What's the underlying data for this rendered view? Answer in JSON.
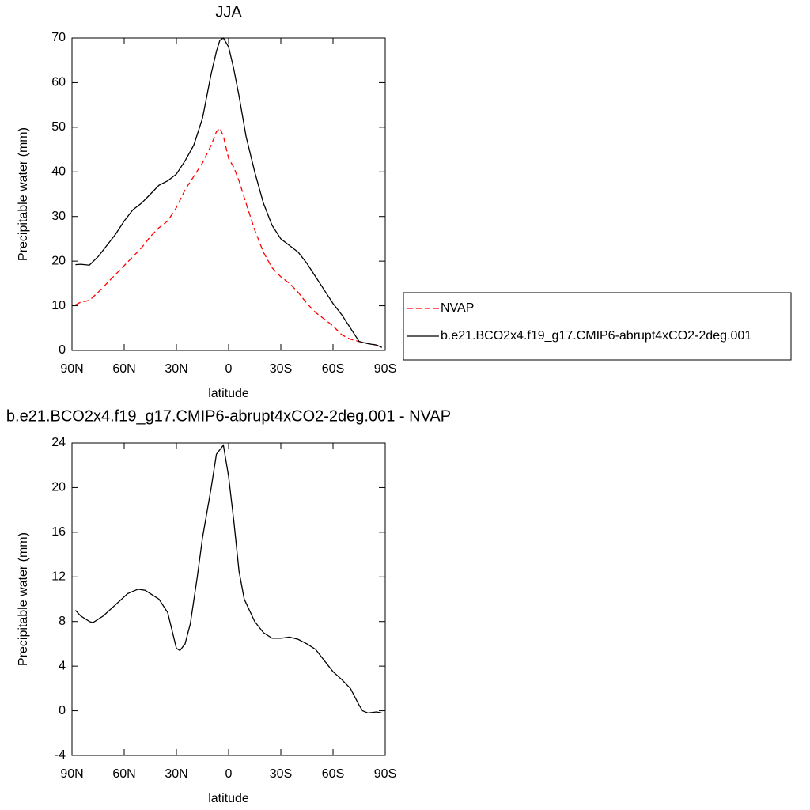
{
  "chart_data": [
    {
      "type": "line",
      "title": "JJA",
      "xlabel": "latitude",
      "ylabel": "Precipitable water (mm)",
      "x": [
        88,
        85,
        80,
        75,
        70,
        65,
        60,
        55,
        50,
        45,
        40,
        35,
        30,
        25,
        20,
        15,
        10,
        7,
        5,
        3,
        0,
        -3,
        -6,
        -10,
        -15,
        -20,
        -25,
        -30,
        -35,
        -40,
        -45,
        -50,
        -55,
        -60,
        -65,
        -70,
        -75,
        -80,
        -85,
        -88
      ],
      "series": [
        {
          "name": "NVAP",
          "color": "#ff0000",
          "line_style": "dashed",
          "values": [
            10.2,
            10.8,
            11.2,
            13,
            15,
            17,
            19,
            21,
            23,
            25.5,
            27.5,
            29,
            32,
            36,
            39,
            42,
            46,
            49,
            49.8,
            48,
            43,
            41,
            38,
            33,
            27,
            22,
            18.5,
            16.5,
            15,
            13,
            10.5,
            8.5,
            7,
            5.5,
            3.5,
            2.5,
            2,
            1.6,
            1.2,
            0.6
          ]
        },
        {
          "name": "b.e21.BCO2x4.f19_g17.CMIP6-abrupt4xCO2-2deg.001",
          "color": "#000000",
          "line_style": "solid",
          "values": [
            19.2,
            19.3,
            19.1,
            21,
            23.5,
            26,
            29,
            31.5,
            33,
            35,
            37,
            38,
            39.5,
            42.5,
            46,
            52,
            62,
            67,
            69.5,
            70,
            68,
            63,
            57,
            48,
            40,
            33,
            28,
            25,
            23.5,
            22,
            19.5,
            16.5,
            13.5,
            10.5,
            8,
            5,
            2,
            1.5,
            1.2,
            0.7
          ]
        }
      ],
      "xlim": [
        90,
        -90
      ],
      "xticks": [
        {
          "value": 90,
          "label": "90N"
        },
        {
          "value": 60,
          "label": "60N"
        },
        {
          "value": 30,
          "label": "30N"
        },
        0,
        {
          "value": -30,
          "label": "30S"
        },
        {
          "value": -60,
          "label": "60S"
        },
        {
          "value": -90,
          "label": "90S"
        }
      ],
      "ylim": [
        0,
        70
      ],
      "yticks": [
        0,
        10,
        20,
        30,
        40,
        50,
        60,
        70
      ],
      "grid": false,
      "legend": "right"
    },
    {
      "type": "line",
      "title": "b.e21.BCO2x4.f19_g17.CMIP6-abrupt4xCO2-2deg.001 - NVAP",
      "xlabel": "latitude",
      "ylabel": "Precipitable water (mm)",
      "x": [
        88,
        85,
        80,
        78,
        72,
        65,
        58,
        52,
        48,
        45,
        40,
        35,
        30,
        28,
        25,
        22,
        18,
        15,
        10,
        7,
        3,
        0,
        -3,
        -6,
        -9,
        -15,
        -20,
        -25,
        -30,
        -35,
        -40,
        -45,
        -50,
        -55,
        -60,
        -65,
        -70,
        -75,
        -77,
        -80,
        -85,
        -88
      ],
      "values": [
        9,
        8.5,
        8,
        7.9,
        8.5,
        9.5,
        10.5,
        10.9,
        10.8,
        10.5,
        10,
        8.8,
        5.6,
        5.4,
        6,
        7.8,
        12,
        15.5,
        20,
        23,
        23.8,
        21,
        17,
        12.5,
        10,
        8,
        7,
        6.5,
        6.5,
        6.6,
        6.4,
        6,
        5.5,
        4.5,
        3.5,
        2.8,
        2,
        0.5,
        0,
        -0.2,
        -0.1,
        -0.2
      ],
      "color": "#000000",
      "line_style": "solid",
      "xlim": [
        90,
        -90
      ],
      "xticks": [
        {
          "value": 90,
          "label": "90N"
        },
        {
          "value": 60,
          "label": "60N"
        },
        {
          "value": 30,
          "label": "30N"
        },
        0,
        {
          "value": -30,
          "label": "30S"
        },
        {
          "value": -60,
          "label": "60S"
        },
        {
          "value": -90,
          "label": "90S"
        }
      ],
      "ylim": [
        -4,
        24
      ],
      "yticks": [
        -4,
        0,
        4,
        8,
        12,
        16,
        20,
        24
      ],
      "grid": false
    }
  ]
}
